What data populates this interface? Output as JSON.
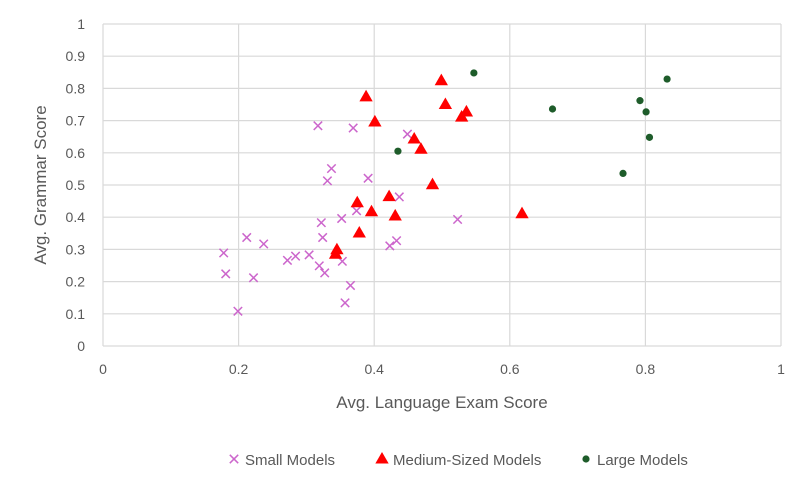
{
  "chart_data": {
    "type": "scatter",
    "title": "",
    "xlabel": "Avg. Language Exam Score",
    "ylabel": "Avg. Grammar Score",
    "xlim": [
      0,
      1
    ],
    "ylim": [
      0,
      1
    ],
    "x_ticks": [
      0,
      0.2,
      0.4,
      0.6,
      0.8,
      1
    ],
    "x_tick_labels": [
      "0",
      "0.2",
      "0.4",
      "0.6",
      "0.8",
      "1"
    ],
    "y_ticks": [
      0,
      0.1,
      0.2,
      0.3,
      0.4,
      0.5,
      0.6,
      0.7,
      0.8,
      0.9,
      1
    ],
    "y_tick_labels": [
      "0",
      "0.1",
      "0.2",
      "0.3",
      "0.4",
      "0.5",
      "0.6",
      "0.7",
      "0.8",
      "0.9",
      "1"
    ],
    "grid": true,
    "legend_position": "bottom",
    "series": [
      {
        "name": "Small Models",
        "marker": "x",
        "color": "#CC66CC",
        "points": [
          [
            0.178,
            0.289
          ],
          [
            0.181,
            0.224
          ],
          [
            0.199,
            0.108
          ],
          [
            0.212,
            0.337
          ],
          [
            0.222,
            0.212
          ],
          [
            0.237,
            0.317
          ],
          [
            0.272,
            0.266
          ],
          [
            0.284,
            0.279
          ],
          [
            0.304,
            0.283
          ],
          [
            0.317,
            0.684
          ],
          [
            0.319,
            0.249
          ],
          [
            0.322,
            0.383
          ],
          [
            0.324,
            0.337
          ],
          [
            0.327,
            0.227
          ],
          [
            0.331,
            0.513
          ],
          [
            0.337,
            0.551
          ],
          [
            0.352,
            0.396
          ],
          [
            0.353,
            0.263
          ],
          [
            0.357,
            0.134
          ],
          [
            0.365,
            0.188
          ],
          [
            0.369,
            0.677
          ],
          [
            0.374,
            0.42
          ],
          [
            0.391,
            0.521
          ],
          [
            0.423,
            0.311
          ],
          [
            0.433,
            0.327
          ],
          [
            0.437,
            0.463
          ],
          [
            0.449,
            0.658
          ],
          [
            0.523,
            0.393
          ]
        ]
      },
      {
        "name": "Medium-Sized Models",
        "marker": "triangle",
        "color": "#FF0000",
        "points": [
          [
            0.343,
            0.285
          ],
          [
            0.345,
            0.299
          ],
          [
            0.375,
            0.445
          ],
          [
            0.378,
            0.351
          ],
          [
            0.388,
            0.774
          ],
          [
            0.396,
            0.417
          ],
          [
            0.401,
            0.696
          ],
          [
            0.422,
            0.464
          ],
          [
            0.431,
            0.404
          ],
          [
            0.459,
            0.643
          ],
          [
            0.469,
            0.611
          ],
          [
            0.486,
            0.501
          ],
          [
            0.499,
            0.824
          ],
          [
            0.505,
            0.75
          ],
          [
            0.529,
            0.711
          ],
          [
            0.536,
            0.727
          ],
          [
            0.618,
            0.411
          ]
        ]
      },
      {
        "name": "Large Models",
        "marker": "circle",
        "color": "#1E5C2A",
        "points": [
          [
            0.435,
            0.605
          ],
          [
            0.547,
            0.848
          ],
          [
            0.663,
            0.736
          ],
          [
            0.767,
            0.536
          ],
          [
            0.792,
            0.762
          ],
          [
            0.801,
            0.727
          ],
          [
            0.806,
            0.648
          ],
          [
            0.832,
            0.829
          ]
        ]
      }
    ]
  },
  "colors": {
    "grid": "#D9D9D9",
    "axis_text": "#595959",
    "background": "#FFFFFF"
  }
}
